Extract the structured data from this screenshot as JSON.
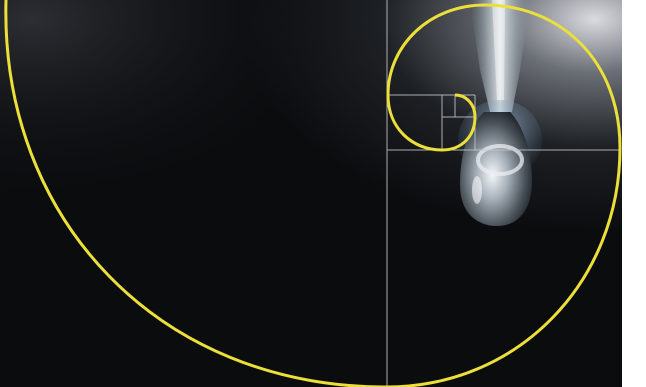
{
  "image": {
    "subject": "water-droplet",
    "overlay": "golden-spiral",
    "colors": {
      "background_dark": "#0b0c0e",
      "background_light": "#9a9ea6",
      "spiral": "#ecdf3a",
      "grid_lines": "#c8c8c8",
      "right_border": "#ffffff"
    }
  }
}
